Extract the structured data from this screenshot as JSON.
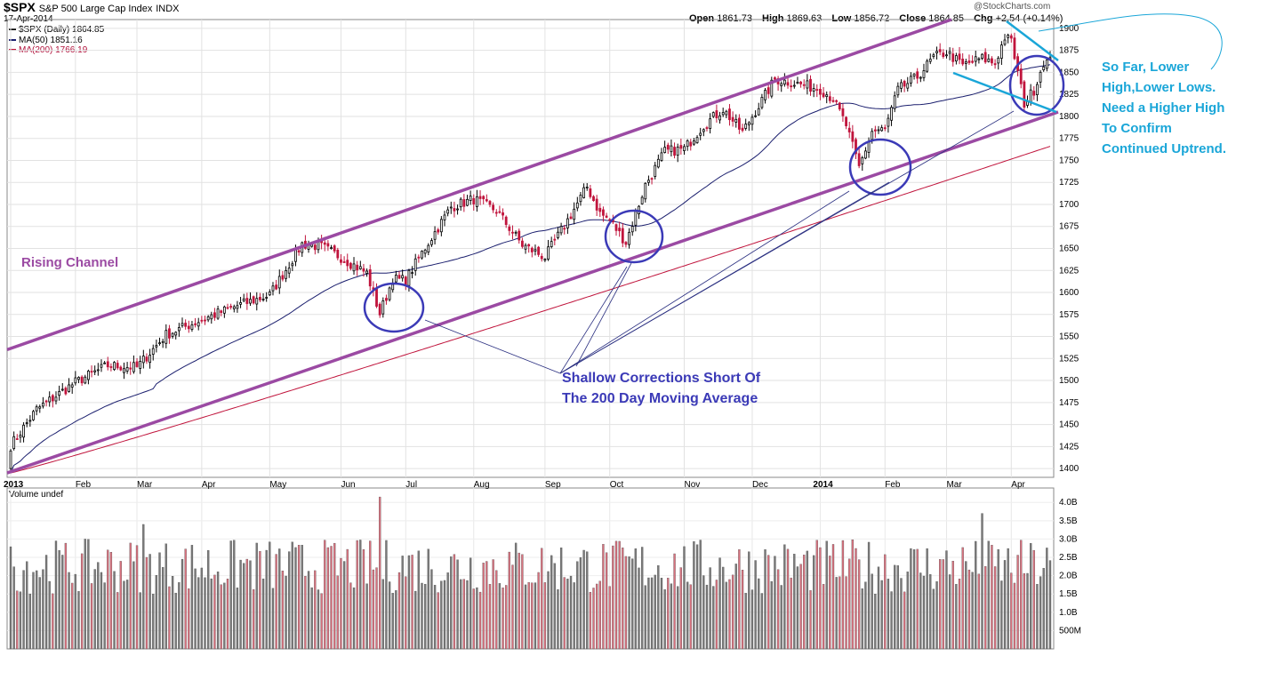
{
  "header": {
    "symbol": "$SPX",
    "name": "S&P 500 Large Cap Index",
    "exchange": "INDX",
    "date": "17-Apr-2014",
    "open_label": "Open",
    "open": "1861.73",
    "high_label": "High",
    "high": "1869.63",
    "low_label": "Low",
    "low": "1856.72",
    "close_label": "Close",
    "close": "1864.85",
    "chg_label": "Chg",
    "chg": "+2.54 (+0.14%)",
    "brand": "@StockCharts.com"
  },
  "legend": {
    "price": "$SPX (Daily) 1864.85",
    "ma50": "MA(50) 1851.16",
    "ma200": "MA(200) 1766.19",
    "volume": "Volume undef"
  },
  "annotations": {
    "channel": "Rising Channel",
    "shallow_line1": "Shallow Corrections Short Of",
    "shallow_line2": "The 200 Day Moving Average",
    "sofar_line1": "So Far, Lower",
    "sofar_line2": "High,Lower Lows.",
    "sofar_line3": "Need a Higher High",
    "sofar_line4": "To Confirm",
    "sofar_line5": "Continued Uptrend."
  },
  "colors": {
    "up_bar": "#000000",
    "down_bar": "#c0143c",
    "ma50": "#1b1f6e",
    "ma200": "#c0143c",
    "channel": "#9b4aa3",
    "circles": "#3b3ab7",
    "wedge": "#1aa6d8",
    "vol_up": "#7a7a7a",
    "vol_down": "#d9727f"
  },
  "chart_data": [
    {
      "type": "candlestick",
      "title": "$SPX S&P 500 Large Cap Index INDX",
      "ylim": [
        1390,
        1910
      ],
      "y_ticks": [
        1400,
        1425,
        1450,
        1475,
        1500,
        1525,
        1550,
        1575,
        1600,
        1625,
        1650,
        1675,
        1700,
        1725,
        1750,
        1775,
        1800,
        1825,
        1850,
        1875,
        1900
      ],
      "x_ticks": [
        "2013",
        "Feb",
        "Mar",
        "Apr",
        "May",
        "Jun",
        "Jul",
        "Aug",
        "Sep",
        "Oct",
        "Nov",
        "Dec",
        "2014",
        "Feb",
        "Mar",
        "Apr"
      ],
      "month_index": [
        0,
        20,
        39,
        59,
        80,
        102,
        122,
        143,
        165,
        185,
        208,
        229,
        250,
        270,
        289,
        309
      ],
      "monthly_close_path": [
        [
          0,
          1426
        ],
        [
          8,
          1467
        ],
        [
          20,
          1498
        ],
        [
          30,
          1517
        ],
        [
          39,
          1515
        ],
        [
          48,
          1552
        ],
        [
          59,
          1569
        ],
        [
          70,
          1585
        ],
        [
          80,
          1597
        ],
        [
          90,
          1655
        ],
        [
          96,
          1652
        ],
        [
          102,
          1640
        ],
        [
          110,
          1622
        ],
        [
          114,
          1576
        ],
        [
          118,
          1615
        ],
        [
          122,
          1614
        ],
        [
          128,
          1651
        ],
        [
          136,
          1697
        ],
        [
          143,
          1706
        ],
        [
          150,
          1693
        ],
        [
          158,
          1654
        ],
        [
          165,
          1640
        ],
        [
          172,
          1682
        ],
        [
          178,
          1720
        ],
        [
          182,
          1690
        ],
        [
          185,
          1682
        ],
        [
          190,
          1657
        ],
        [
          196,
          1722
        ],
        [
          202,
          1760
        ],
        [
          208,
          1763
        ],
        [
          214,
          1790
        ],
        [
          220,
          1808
        ],
        [
          226,
          1782
        ],
        [
          229,
          1800
        ],
        [
          236,
          1842
        ],
        [
          242,
          1838
        ],
        [
          250,
          1831
        ],
        [
          254,
          1820
        ],
        [
          258,
          1790
        ],
        [
          262,
          1742
        ],
        [
          266,
          1783
        ],
        [
          270,
          1785
        ],
        [
          274,
          1830
        ],
        [
          280,
          1845
        ],
        [
          285,
          1867
        ],
        [
          289,
          1873
        ],
        [
          294,
          1858
        ],
        [
          300,
          1866
        ],
        [
          304,
          1860
        ],
        [
          307,
          1890
        ],
        [
          309,
          1885
        ],
        [
          313,
          1815
        ],
        [
          316,
          1830
        ],
        [
          319,
          1862
        ]
      ],
      "series": [
        {
          "name": "$SPX (Daily) 1864.85"
        },
        {
          "name": "MA(50) 1851.16"
        },
        {
          "name": "MA(200) 1766.19"
        }
      ]
    },
    {
      "type": "bar",
      "title": "Volume undef",
      "ylim": [
        0,
        4.2
      ],
      "y_tick_labels": [
        "500M",
        "1.0B",
        "1.5B",
        "2.0B",
        "2.5B",
        "3.0B",
        "3.5B",
        "4.0B"
      ],
      "y_tick_values": [
        0.5,
        1.0,
        1.5,
        2.0,
        2.5,
        3.0,
        3.5,
        4.0
      ],
      "units": "billions of shares",
      "typical_range": [
        1.5,
        3.0
      ],
      "notable_spikes": [
        {
          "index": 114,
          "value": 4.15
        },
        {
          "index": 41,
          "value": 3.4
        },
        {
          "index": 300,
          "value": 3.7
        }
      ]
    }
  ]
}
